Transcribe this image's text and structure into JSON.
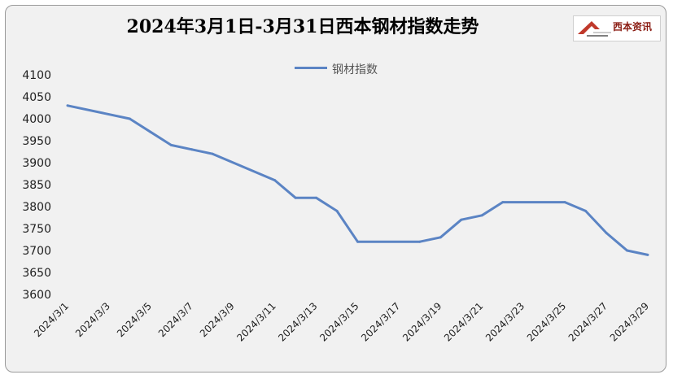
{
  "chart_data": {
    "type": "line",
    "title": "2024年3月1日-3月31日西本钢材指数走势",
    "legend": {
      "position": "top",
      "entries": [
        "钢材指数"
      ]
    },
    "series": [
      {
        "name": "钢材指数",
        "color": "#5b84c4",
        "x": [
          "2024/3/1",
          "2024/3/4",
          "2024/3/5",
          "2024/3/6",
          "2024/3/7",
          "2024/3/8",
          "2024/3/11",
          "2024/3/12",
          "2024/3/13",
          "2024/3/14",
          "2024/3/15",
          "2024/3/18",
          "2024/3/19",
          "2024/3/20",
          "2024/3/21",
          "2024/3/22",
          "2024/3/25",
          "2024/3/26",
          "2024/3/27",
          "2024/3/28",
          "2024/3/29"
        ],
        "values": [
          4030,
          4000,
          3970,
          3940,
          3930,
          3920,
          3860,
          3820,
          3820,
          3790,
          3720,
          3720,
          3730,
          3770,
          3780,
          3810,
          3810,
          3790,
          3740,
          3700,
          3690
        ]
      }
    ],
    "x_tick_labels": [
      "2024/3/1",
      "2024/3/3",
      "2024/3/5",
      "2024/3/7",
      "2024/3/9",
      "2024/3/11",
      "2024/3/13",
      "2024/3/15",
      "2024/3/17",
      "2024/3/19",
      "2024/3/21",
      "2024/3/23",
      "2024/3/25",
      "2024/3/27",
      "2024/3/29"
    ],
    "ylim": [
      3600,
      4100
    ],
    "y_ticks": [
      3600,
      3650,
      3700,
      3750,
      3800,
      3850,
      3900,
      3950,
      4000,
      4050,
      4100
    ],
    "grid": false,
    "drop_lines": true
  },
  "logo": {
    "text": "西本资讯"
  }
}
